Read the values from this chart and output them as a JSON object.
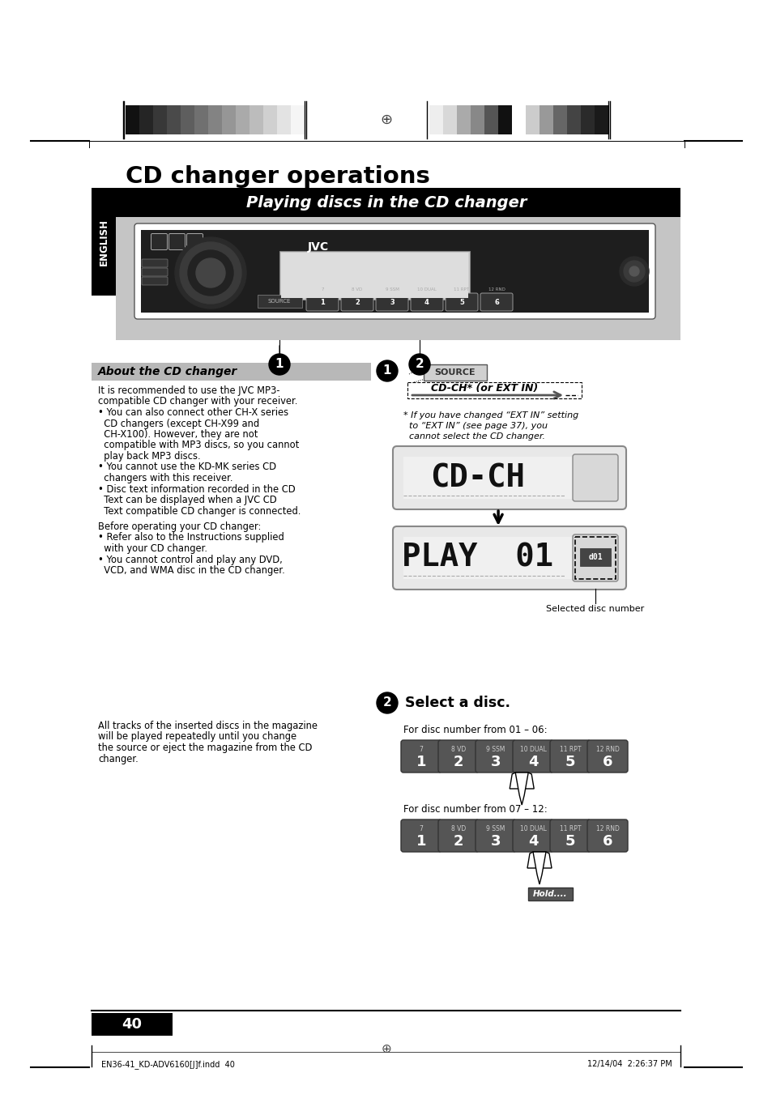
{
  "page_bg": "#ffffff",
  "title": "CD changer operations",
  "section_title": "Playing discs in the CD changer",
  "english_label": "ENGLISH",
  "about_title": "About the CD changer",
  "about_lines": [
    "It is recommended to use the JVC MP3-",
    "compatible CD changer with your receiver.",
    "• You can also connect other CH-X series",
    "  CD changers (except CH-X99 and",
    "  CH-X100). However, they are not",
    "  compatible with MP3 discs, so you cannot",
    "  play back MP3 discs.",
    "• You cannot use the KD-MK series CD",
    "  changers with this receiver.",
    "• Disc text information recorded in the CD",
    "  Text can be displayed when a JVC CD",
    "  Text compatible CD changer is connected."
  ],
  "before_lines": [
    "Before operating your CD changer:",
    "• Refer also to the Instructions supplied",
    "  with your CD changer.",
    "• You cannot control and play any DVD,",
    "  VCD, and WMA disc in the CD changer."
  ],
  "bottom_para": [
    "All tracks of the inserted discs in the magazine",
    "will be played repeatedly until you change",
    "the source or eject the magazine from the CD",
    "changer."
  ],
  "footnote_lines": [
    "* If you have changed “EXT IN” setting",
    "  to “EXT IN” (see page 37), you",
    "  cannot select the CD changer."
  ],
  "step2_title": "Select a disc.",
  "disc_range1": "For disc number from 01 – 06:",
  "disc_range2": "For disc number from 07 – 12:",
  "btn_top_labels": [
    "7",
    "8 VD",
    "9 SSM",
    "10 DUAL",
    "11 RPT",
    "12 RND"
  ],
  "btn_bot_labels": [
    "1",
    "2",
    "3",
    "4",
    "5",
    "6"
  ],
  "selected_disc": "Selected disc number",
  "page_num": "40",
  "footer_left": "EN36-41_KD-ADV6160[J]f.indd  40",
  "footer_right": "12/14/04  2:26:37 PM",
  "gs_left": [
    "#111111",
    "#252525",
    "#383838",
    "#4a4a4a",
    "#5e5e5e",
    "#707070",
    "#838383",
    "#969696",
    "#aaaaaa",
    "#bcbcbc",
    "#d0d0d0",
    "#e3e3e3",
    "#f5f5f5"
  ],
  "gs_right": [
    "#eeeeee",
    "#d8d8d8",
    "#aaaaaa",
    "#888888",
    "#555555",
    "#111111",
    "#ffffff",
    "#cccccc",
    "#999999",
    "#666666",
    "#444444",
    "#2a2a2a",
    "#1a1a1a"
  ]
}
